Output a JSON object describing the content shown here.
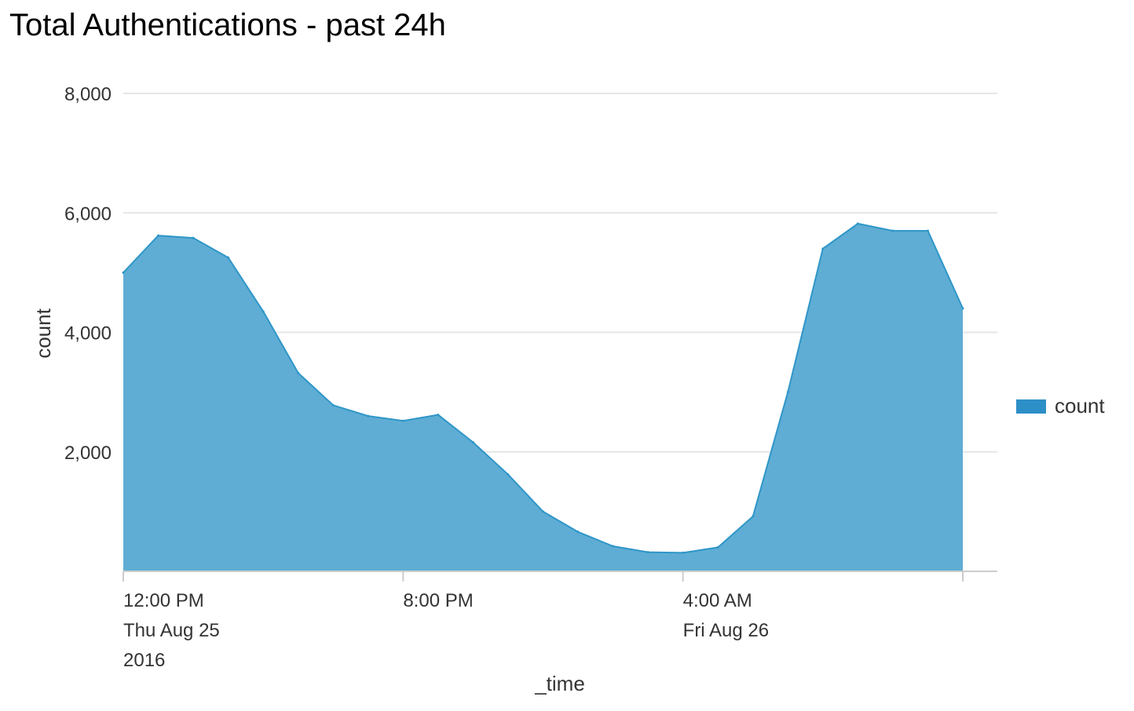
{
  "title": "Total Authentications - past 24h",
  "chart_data": {
    "type": "area",
    "title": "Total Authentications - past 24h",
    "xlabel": "_time",
    "ylabel": "count",
    "ylim": [
      0,
      8000
    ],
    "y_ticks": [
      2000,
      4000,
      6000,
      8000
    ],
    "y_tick_labels": [
      "2,000",
      "4,000",
      "6,000",
      "8,000"
    ],
    "x_range": [
      "2016-08-25 12:00",
      "2016-08-26 12:00"
    ],
    "x_ticks": [
      {
        "time": "2016-08-25 12:00",
        "lines": [
          "12:00 PM",
          "Thu Aug 25",
          "2016"
        ]
      },
      {
        "time": "2016-08-25 20:00",
        "lines": [
          "8:00 PM"
        ]
      },
      {
        "time": "2016-08-26 04:00",
        "lines": [
          "4:00 AM",
          "Fri Aug 26"
        ]
      },
      {
        "time": "2016-08-26 12:00",
        "lines": []
      }
    ],
    "grid": true,
    "legend_position": "right",
    "color": "#5fadd4",
    "line_color": "#2f96c8",
    "legend_color": "#2d8fc7",
    "series": [
      {
        "name": "count",
        "x": [
          "2016-08-25 12:00",
          "2016-08-25 13:00",
          "2016-08-25 14:00",
          "2016-08-25 15:00",
          "2016-08-25 16:00",
          "2016-08-25 17:00",
          "2016-08-25 18:00",
          "2016-08-25 19:00",
          "2016-08-25 20:00",
          "2016-08-25 21:00",
          "2016-08-25 22:00",
          "2016-08-25 23:00",
          "2016-08-26 00:00",
          "2016-08-26 01:00",
          "2016-08-26 02:00",
          "2016-08-26 03:00",
          "2016-08-26 04:00",
          "2016-08-26 05:00",
          "2016-08-26 06:00",
          "2016-08-26 07:00",
          "2016-08-26 08:00",
          "2016-08-26 09:00",
          "2016-08-26 10:00",
          "2016-08-26 11:00",
          "2016-08-26 12:00"
        ],
        "values": [
          5000,
          5620,
          5580,
          5250,
          4350,
          3320,
          2780,
          2600,
          2520,
          2620,
          2160,
          1620,
          1000,
          660,
          420,
          320,
          310,
          400,
          920,
          3000,
          5400,
          5820,
          5700,
          5700,
          4400
        ]
      }
    ]
  }
}
